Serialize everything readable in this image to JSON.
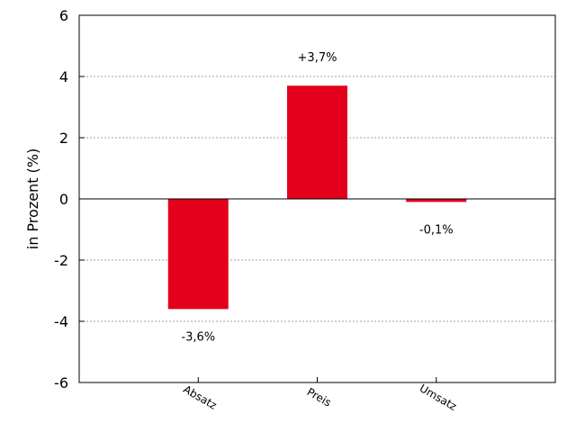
{
  "chart_data": {
    "type": "bar",
    "categories": [
      "Absatz",
      "Preis",
      "Umsatz"
    ],
    "values": [
      -3.6,
      3.7,
      -0.1
    ],
    "data_labels": [
      "-3,6%",
      "+3,7%",
      "-0,1%"
    ],
    "ylabel": "in Prozent (%)",
    "xlabel": "",
    "ylim": [
      -6,
      6
    ],
    "yticks": [
      -6,
      -4,
      -2,
      0,
      2,
      4,
      6
    ],
    "ytick_labels": [
      "-6",
      "-4",
      "-2",
      "0",
      "2",
      "4",
      "6"
    ],
    "grid": true,
    "legend": "none",
    "colors": {
      "bar": "#e3001b",
      "grid": "#a0a0a0",
      "zero_line": "#000000"
    }
  }
}
